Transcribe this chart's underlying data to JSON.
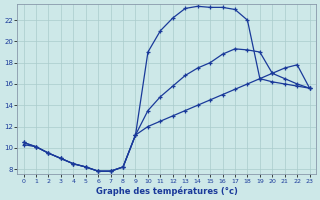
{
  "xlabel": "Graphe des températures (°c)",
  "bg_color": "#cde8e8",
  "grid_color": "#aacccc",
  "line_color": "#1a3a9a",
  "xlim": [
    -0.5,
    23.5
  ],
  "ylim": [
    7.5,
    23.5
  ],
  "xticks": [
    0,
    1,
    2,
    3,
    4,
    5,
    6,
    7,
    8,
    9,
    10,
    11,
    12,
    13,
    14,
    15,
    16,
    17,
    18,
    19,
    20,
    21,
    22,
    23
  ],
  "yticks": [
    8,
    10,
    12,
    14,
    16,
    18,
    20,
    22
  ],
  "line1_x": [
    0,
    1,
    2,
    3,
    4,
    5,
    6,
    7,
    8,
    9,
    10,
    11,
    12,
    13,
    14,
    15,
    16,
    17,
    18,
    19,
    20,
    21,
    22,
    23
  ],
  "line1_y": [
    10.5,
    10.1,
    9.5,
    9.0,
    8.5,
    8.2,
    7.8,
    7.8,
    8.2,
    11.2,
    19.0,
    21.0,
    22.2,
    23.1,
    23.3,
    23.2,
    23.2,
    23.0,
    22.0,
    16.5,
    16.2,
    16.0,
    15.8,
    15.6
  ],
  "line2_x": [
    0,
    1,
    2,
    3,
    4,
    5,
    6,
    7,
    8,
    9,
    10,
    11,
    12,
    13,
    14,
    15,
    16,
    17,
    18,
    19,
    20,
    21,
    22,
    23
  ],
  "line2_y": [
    10.5,
    10.1,
    9.5,
    9.0,
    8.5,
    8.2,
    7.8,
    7.8,
    8.2,
    11.2,
    13.5,
    14.8,
    15.8,
    16.8,
    17.5,
    18.0,
    18.8,
    19.3,
    19.2,
    19.0,
    17.0,
    16.5,
    16.0,
    15.6
  ],
  "line3_x": [
    0,
    1,
    2,
    3,
    4,
    5,
    6,
    7,
    8,
    9,
    10,
    11,
    12,
    13,
    14,
    15,
    16,
    17,
    18,
    19,
    20,
    21,
    22,
    23
  ],
  "line3_y": [
    10.3,
    10.1,
    9.5,
    9.0,
    8.5,
    8.2,
    7.8,
    7.8,
    8.2,
    11.2,
    12.0,
    12.5,
    13.0,
    13.5,
    14.0,
    14.5,
    15.0,
    15.5,
    16.0,
    16.5,
    17.0,
    17.5,
    17.8,
    15.6
  ]
}
